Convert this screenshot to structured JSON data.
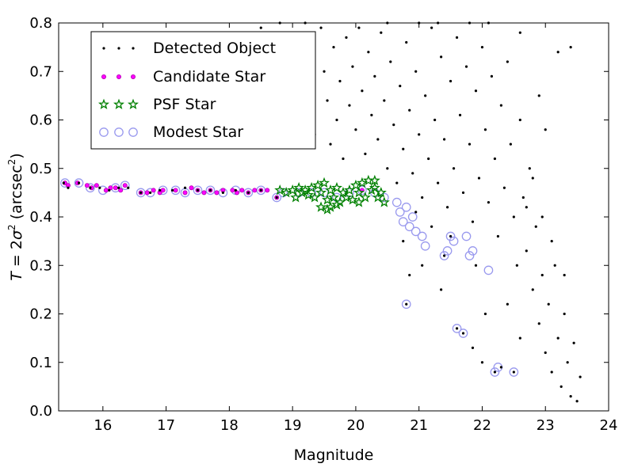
{
  "chart_data": {
    "type": "scatter",
    "title": "",
    "xlabel": "Magnitude",
    "ylabel": "T = 2σ² (arcsec²)",
    "ylabel_parts": {
      "pre": "T",
      "eq": " = 2",
      "sig": "σ",
      "sup": "2",
      "unit_open": " (arcsec",
      "unit_sup": "2",
      "unit_close": ")"
    },
    "xlim": [
      15.3,
      24.0
    ],
    "ylim": [
      0.0,
      0.8
    ],
    "xticks": [
      16,
      17,
      18,
      19,
      20,
      21,
      22,
      23,
      24
    ],
    "yticks": [
      0.0,
      0.1,
      0.2,
      0.3,
      0.4,
      0.5,
      0.6,
      0.7,
      0.8
    ],
    "grid": false,
    "legend_position": "top-left",
    "colors": {
      "detected": "#000000",
      "candidate": "#ff00ff",
      "psf": "#008000",
      "modest": "#9999ee"
    },
    "series": [
      {
        "name": "Detected Object",
        "marker": "dot",
        "points": [
          [
            15.38,
            0.47
          ],
          [
            15.45,
            0.46
          ],
          [
            15.62,
            0.47
          ],
          [
            15.8,
            0.46
          ],
          [
            15.95,
            0.46
          ],
          [
            16.1,
            0.455
          ],
          [
            16.25,
            0.46
          ],
          [
            16.4,
            0.46
          ],
          [
            16.6,
            0.45
          ],
          [
            16.75,
            0.45
          ],
          [
            16.9,
            0.455
          ],
          [
            17.1,
            0.455
          ],
          [
            17.3,
            0.46
          ],
          [
            17.5,
            0.455
          ],
          [
            17.7,
            0.455
          ],
          [
            17.9,
            0.45
          ],
          [
            18.1,
            0.455
          ],
          [
            18.3,
            0.45
          ],
          [
            18.5,
            0.455
          ],
          [
            18.75,
            0.44
          ],
          [
            18.5,
            0.79
          ],
          [
            18.7,
            0.76
          ],
          [
            18.9,
            0.68
          ],
          [
            19.05,
            0.78
          ],
          [
            19.1,
            0.62
          ],
          [
            19.2,
            0.66
          ],
          [
            19.3,
            0.72
          ],
          [
            19.35,
            0.57
          ],
          [
            19.45,
            0.79
          ],
          [
            19.5,
            0.7
          ],
          [
            19.55,
            0.64
          ],
          [
            19.6,
            0.55
          ],
          [
            19.65,
            0.75
          ],
          [
            19.7,
            0.6
          ],
          [
            19.75,
            0.68
          ],
          [
            19.8,
            0.52
          ],
          [
            19.85,
            0.77
          ],
          [
            19.9,
            0.63
          ],
          [
            19.95,
            0.71
          ],
          [
            20.0,
            0.58
          ],
          [
            20.05,
            0.79
          ],
          [
            20.1,
            0.66
          ],
          [
            20.15,
            0.53
          ],
          [
            20.2,
            0.74
          ],
          [
            20.25,
            0.61
          ],
          [
            20.3,
            0.69
          ],
          [
            20.35,
            0.56
          ],
          [
            20.4,
            0.78
          ],
          [
            20.45,
            0.64
          ],
          [
            20.5,
            0.5
          ],
          [
            20.55,
            0.72
          ],
          [
            20.6,
            0.59
          ],
          [
            20.65,
            0.47
          ],
          [
            20.7,
            0.67
          ],
          [
            20.75,
            0.54
          ],
          [
            20.8,
            0.76
          ],
          [
            20.85,
            0.62
          ],
          [
            20.9,
            0.49
          ],
          [
            20.95,
            0.7
          ],
          [
            21.0,
            0.57
          ],
          [
            21.05,
            0.44
          ],
          [
            21.1,
            0.65
          ],
          [
            21.15,
            0.52
          ],
          [
            21.2,
            0.79
          ],
          [
            21.25,
            0.6
          ],
          [
            21.3,
            0.47
          ],
          [
            21.35,
            0.73
          ],
          [
            21.4,
            0.56
          ],
          [
            21.45,
            0.42
          ],
          [
            21.5,
            0.68
          ],
          [
            21.55,
            0.5
          ],
          [
            21.6,
            0.77
          ],
          [
            21.65,
            0.61
          ],
          [
            21.7,
            0.45
          ],
          [
            21.75,
            0.71
          ],
          [
            21.8,
            0.55
          ],
          [
            21.85,
            0.39
          ],
          [
            21.9,
            0.66
          ],
          [
            21.95,
            0.48
          ],
          [
            22.0,
            0.75
          ],
          [
            22.05,
            0.58
          ],
          [
            22.1,
            0.43
          ],
          [
            22.15,
            0.69
          ],
          [
            22.2,
            0.52
          ],
          [
            22.25,
            0.36
          ],
          [
            22.3,
            0.63
          ],
          [
            22.35,
            0.46
          ],
          [
            22.4,
            0.72
          ],
          [
            22.45,
            0.55
          ],
          [
            22.5,
            0.4
          ],
          [
            22.55,
            0.3
          ],
          [
            22.6,
            0.6
          ],
          [
            22.65,
            0.44
          ],
          [
            22.7,
            0.33
          ],
          [
            22.75,
            0.5
          ],
          [
            22.8,
            0.25
          ],
          [
            22.85,
            0.38
          ],
          [
            22.9,
            0.18
          ],
          [
            22.95,
            0.28
          ],
          [
            23.0,
            0.12
          ],
          [
            23.05,
            0.22
          ],
          [
            23.1,
            0.08
          ],
          [
            23.15,
            0.3
          ],
          [
            23.2,
            0.15
          ],
          [
            23.25,
            0.05
          ],
          [
            23.3,
            0.2
          ],
          [
            23.35,
            0.1
          ],
          [
            23.4,
            0.03
          ],
          [
            23.45,
            0.14
          ],
          [
            23.5,
            0.02
          ],
          [
            23.55,
            0.07
          ],
          [
            20.75,
            0.35
          ],
          [
            20.8,
            0.22
          ],
          [
            20.85,
            0.28
          ],
          [
            21.4,
            0.32
          ],
          [
            21.5,
            0.36
          ],
          [
            21.6,
            0.17
          ],
          [
            21.7,
            0.16
          ],
          [
            21.9,
            0.3
          ],
          [
            22.2,
            0.08
          ],
          [
            22.3,
            0.09
          ],
          [
            22.5,
            0.08
          ],
          [
            23.2,
            0.74
          ],
          [
            23.4,
            0.75
          ],
          [
            22.9,
            0.65
          ],
          [
            23.0,
            0.58
          ],
          [
            21.3,
            0.8
          ],
          [
            21.8,
            0.8
          ],
          [
            22.1,
            0.8
          ],
          [
            22.6,
            0.78
          ],
          [
            21.0,
            0.8
          ],
          [
            20.5,
            0.8
          ],
          [
            19.2,
            0.8
          ],
          [
            18.8,
            0.8
          ],
          [
            22.7,
            0.42
          ],
          [
            22.8,
            0.48
          ],
          [
            22.95,
            0.4
          ],
          [
            23.1,
            0.35
          ],
          [
            21.2,
            0.38
          ],
          [
            21.35,
            0.25
          ],
          [
            21.05,
            0.3
          ],
          [
            20.95,
            0.41
          ],
          [
            22.05,
            0.2
          ],
          [
            22.4,
            0.22
          ],
          [
            22.6,
            0.15
          ],
          [
            23.3,
            0.28
          ],
          [
            22.0,
            0.1
          ],
          [
            21.85,
            0.13
          ]
        ]
      },
      {
        "name": "Candidate Star",
        "marker": "small-circle",
        "points": [
          [
            15.4,
            0.47
          ],
          [
            15.45,
            0.465
          ],
          [
            15.6,
            0.47
          ],
          [
            15.75,
            0.465
          ],
          [
            15.82,
            0.46
          ],
          [
            15.9,
            0.465
          ],
          [
            16.05,
            0.455
          ],
          [
            16.12,
            0.46
          ],
          [
            16.2,
            0.46
          ],
          [
            16.28,
            0.455
          ],
          [
            16.35,
            0.465
          ],
          [
            16.6,
            0.45
          ],
          [
            16.7,
            0.45
          ],
          [
            16.8,
            0.455
          ],
          [
            16.9,
            0.45
          ],
          [
            16.95,
            0.455
          ],
          [
            17.15,
            0.455
          ],
          [
            17.3,
            0.45
          ],
          [
            17.4,
            0.46
          ],
          [
            17.5,
            0.455
          ],
          [
            17.6,
            0.45
          ],
          [
            17.7,
            0.455
          ],
          [
            17.8,
            0.45
          ],
          [
            17.9,
            0.455
          ],
          [
            18.05,
            0.455
          ],
          [
            18.12,
            0.45
          ],
          [
            18.2,
            0.455
          ],
          [
            18.3,
            0.45
          ],
          [
            18.4,
            0.455
          ],
          [
            18.5,
            0.455
          ],
          [
            18.6,
            0.455
          ],
          [
            18.75,
            0.44
          ],
          [
            20.1,
            0.455
          ]
        ]
      },
      {
        "name": "PSF Star",
        "marker": "star",
        "points": [
          [
            18.8,
            0.455
          ],
          [
            18.9,
            0.45
          ],
          [
            19.0,
            0.455
          ],
          [
            19.05,
            0.44
          ],
          [
            19.1,
            0.46
          ],
          [
            19.15,
            0.45
          ],
          [
            19.2,
            0.455
          ],
          [
            19.25,
            0.445
          ],
          [
            19.3,
            0.46
          ],
          [
            19.35,
            0.44
          ],
          [
            19.4,
            0.465
          ],
          [
            19.45,
            0.45
          ],
          [
            19.5,
            0.47
          ],
          [
            19.55,
            0.435
          ],
          [
            19.6,
            0.455
          ],
          [
            19.65,
            0.44
          ],
          [
            19.7,
            0.46
          ],
          [
            19.75,
            0.43
          ],
          [
            19.8,
            0.45
          ],
          [
            19.85,
            0.44
          ],
          [
            19.9,
            0.455
          ],
          [
            19.95,
            0.435
          ],
          [
            20.0,
            0.465
          ],
          [
            20.05,
            0.45
          ],
          [
            20.1,
            0.47
          ],
          [
            20.15,
            0.44
          ],
          [
            20.2,
            0.475
          ],
          [
            20.25,
            0.455
          ],
          [
            20.3,
            0.46
          ],
          [
            20.35,
            0.44
          ],
          [
            20.4,
            0.45
          ],
          [
            20.45,
            0.43
          ],
          [
            19.45,
            0.42
          ],
          [
            19.55,
            0.415
          ],
          [
            19.6,
            0.42
          ],
          [
            19.7,
            0.425
          ],
          [
            20.05,
            0.43
          ],
          [
            20.3,
            0.475
          ]
        ]
      },
      {
        "name": "Modest Star",
        "marker": "large-ring",
        "points": [
          [
            15.4,
            0.47
          ],
          [
            15.62,
            0.47
          ],
          [
            15.8,
            0.46
          ],
          [
            16.0,
            0.455
          ],
          [
            16.2,
            0.46
          ],
          [
            16.35,
            0.465
          ],
          [
            16.6,
            0.45
          ],
          [
            16.75,
            0.45
          ],
          [
            16.95,
            0.455
          ],
          [
            17.15,
            0.455
          ],
          [
            17.3,
            0.45
          ],
          [
            17.5,
            0.455
          ],
          [
            17.7,
            0.455
          ],
          [
            17.9,
            0.45
          ],
          [
            18.1,
            0.455
          ],
          [
            18.3,
            0.45
          ],
          [
            18.5,
            0.455
          ],
          [
            18.75,
            0.44
          ],
          [
            18.85,
            0.45
          ],
          [
            19.1,
            0.45
          ],
          [
            19.3,
            0.45
          ],
          [
            19.5,
            0.45
          ],
          [
            19.7,
            0.44
          ],
          [
            19.9,
            0.45
          ],
          [
            20.1,
            0.455
          ],
          [
            20.3,
            0.45
          ],
          [
            20.45,
            0.44
          ],
          [
            20.65,
            0.43
          ],
          [
            20.7,
            0.41
          ],
          [
            20.75,
            0.39
          ],
          [
            20.8,
            0.42
          ],
          [
            20.85,
            0.38
          ],
          [
            20.9,
            0.4
          ],
          [
            20.95,
            0.37
          ],
          [
            21.05,
            0.36
          ],
          [
            21.1,
            0.34
          ],
          [
            20.8,
            0.22
          ],
          [
            21.4,
            0.32
          ],
          [
            21.45,
            0.33
          ],
          [
            21.5,
            0.36
          ],
          [
            21.55,
            0.35
          ],
          [
            21.6,
            0.17
          ],
          [
            21.7,
            0.16
          ],
          [
            21.75,
            0.36
          ],
          [
            21.8,
            0.32
          ],
          [
            21.85,
            0.33
          ],
          [
            22.1,
            0.29
          ],
          [
            22.2,
            0.08
          ],
          [
            22.25,
            0.09
          ],
          [
            22.5,
            0.08
          ]
        ]
      }
    ]
  }
}
